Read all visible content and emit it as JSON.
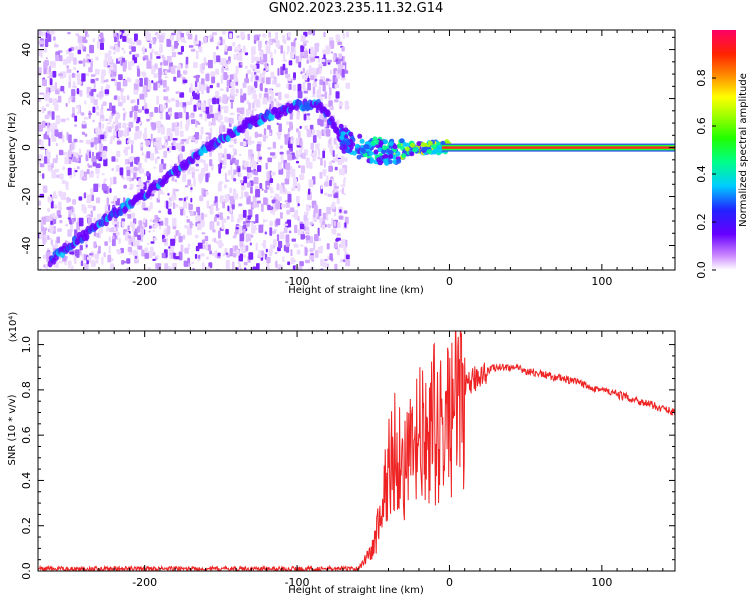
{
  "title": "GN02.2023.235.11.32.G14",
  "chart_data": [
    {
      "type": "heatmap",
      "xlabel": "Height of straight line (km)",
      "ylabel": "Frequency (Hz)",
      "xlim": [
        -270,
        148
      ],
      "ylim": [
        -50,
        48
      ],
      "xticks": [
        -200,
        -100,
        0,
        100
      ],
      "yticks": [
        -40,
        -20,
        0,
        20,
        40
      ],
      "colorbar": {
        "label": "Normalized spectral amplitude",
        "range": [
          0,
          1
        ],
        "ticks": [
          0.0,
          0.2,
          0.4,
          0.6,
          0.8
        ],
        "tick_labels": [
          "0.0",
          "0.2",
          "0.4",
          "0.6",
          "0.8"
        ]
      },
      "ridge": {
        "description_free_values": true,
        "x": [
          -262,
          -240,
          -220,
          -200,
          -180,
          -160,
          -140,
          -120,
          -100,
          -85,
          -70,
          -60,
          -50,
          -40,
          -30,
          -20,
          -10,
          0,
          50,
          100,
          148
        ],
        "y": [
          -46,
          -36,
          -27,
          -19,
          -10,
          0,
          7,
          13,
          17,
          18,
          3,
          0,
          -1,
          -2,
          -1,
          0,
          0,
          0,
          0,
          0,
          0
        ]
      },
      "noise_extent_x": [
        -270,
        -68
      ],
      "stable_band_y": 0
    },
    {
      "type": "line",
      "xlabel": "Height of straight line (km)",
      "ylabel": "SNR (10 * v/v)",
      "y_multiplier": "(x10⁴)",
      "xlim": [
        -270,
        148
      ],
      "ylim": [
        0,
        1.06
      ],
      "xticks": [
        -200,
        -100,
        0,
        100
      ],
      "yticks": [
        0.0,
        0.2,
        0.4,
        0.6,
        0.8,
        1.0
      ],
      "ytick_labels": [
        "0.0",
        "0.2",
        "0.4",
        "0.6",
        "0.8",
        "1.0"
      ],
      "color": "#ee2222",
      "keypoints": {
        "x": [
          -270,
          -60,
          -50,
          -45,
          -40,
          -35,
          -30,
          -25,
          -20,
          -15,
          -10,
          -5,
          0,
          5,
          10,
          20,
          30,
          40,
          60,
          80,
          100,
          120,
          148
        ],
        "y": [
          0.01,
          0.01,
          0.1,
          0.25,
          0.45,
          0.55,
          0.45,
          0.5,
          0.6,
          0.55,
          0.65,
          0.6,
          0.7,
          0.75,
          0.8,
          0.87,
          0.9,
          0.9,
          0.87,
          0.84,
          0.8,
          0.76,
          0.7
        ]
      }
    }
  ]
}
